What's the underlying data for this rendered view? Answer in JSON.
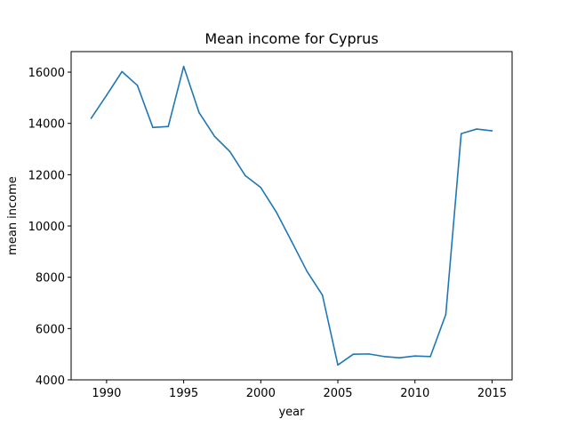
{
  "chart_data": {
    "type": "line",
    "title": "Mean income for Cyprus",
    "xlabel": "year",
    "ylabel": "mean income",
    "xlim": [
      1987.7,
      2016.3
    ],
    "ylim": [
      4000,
      16800
    ],
    "xticks": [
      1990,
      1995,
      2000,
      2005,
      2010,
      2015
    ],
    "yticks": [
      4000,
      6000,
      8000,
      10000,
      12000,
      14000,
      16000
    ],
    "grid": false,
    "series": [
      {
        "color": "#1f77b4",
        "x": [
          1989,
          1990,
          1991,
          1992,
          1993,
          1994,
          1995,
          1996,
          1997,
          1998,
          1999,
          2000,
          2001,
          2002,
          2003,
          2004,
          2005,
          2006,
          2007,
          2008,
          2009,
          2010,
          2011,
          2012,
          2013,
          2014,
          2015
        ],
        "y": [
          14200,
          15100,
          16020,
          15480,
          13840,
          13880,
          16220,
          14420,
          13500,
          12900,
          11960,
          11500,
          10550,
          9400,
          8230,
          7300,
          4580,
          5000,
          5010,
          4910,
          4860,
          4930,
          4910,
          6550,
          13600,
          13780,
          13710
        ]
      }
    ]
  }
}
